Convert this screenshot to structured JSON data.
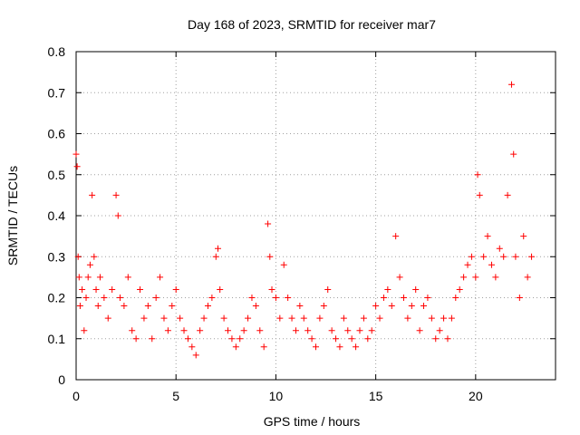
{
  "chart_data": {
    "type": "scatter",
    "title": "Day 168 of 2023, SRMTID for receiver mar7",
    "xlabel": "GPS time / hours",
    "ylabel": "SRMTID / TECUs",
    "xlim": [
      0,
      24
    ],
    "ylim": [
      0,
      0.8
    ],
    "xticks": [
      0,
      5,
      10,
      15,
      20
    ],
    "yticks": [
      0,
      0.1,
      0.2,
      0.3,
      0.4,
      0.5,
      0.6,
      0.7,
      0.8
    ],
    "xtick_labels": [
      "0",
      "5",
      "10",
      "15",
      "20"
    ],
    "ytick_labels": [
      "0",
      "0.1",
      "0.2",
      "0.3",
      "0.4",
      "0.5",
      "0.6",
      "0.7",
      "0.8"
    ],
    "grid": true,
    "marker": "+",
    "color": "#ff0000",
    "series": [
      {
        "name": "SRMTID",
        "x": [
          0.0,
          0.05,
          0.1,
          0.15,
          0.2,
          0.3,
          0.4,
          0.5,
          0.6,
          0.7,
          0.8,
          0.9,
          1.0,
          1.1,
          1.2,
          1.4,
          1.6,
          1.8,
          2.0,
          2.1,
          2.2,
          2.4,
          2.6,
          2.8,
          3.0,
          3.2,
          3.4,
          3.6,
          3.8,
          4.0,
          4.2,
          4.4,
          4.6,
          4.8,
          5.0,
          5.2,
          5.4,
          5.6,
          5.8,
          6.0,
          6.2,
          6.4,
          6.6,
          6.8,
          7.0,
          7.1,
          7.2,
          7.4,
          7.6,
          7.8,
          8.0,
          8.2,
          8.4,
          8.6,
          8.8,
          9.0,
          9.2,
          9.4,
          9.6,
          9.7,
          9.8,
          10.0,
          10.2,
          10.4,
          10.6,
          10.8,
          11.0,
          11.2,
          11.4,
          11.6,
          11.8,
          12.0,
          12.2,
          12.4,
          12.6,
          12.8,
          13.0,
          13.2,
          13.4,
          13.6,
          13.8,
          14.0,
          14.2,
          14.4,
          14.6,
          14.8,
          15.0,
          15.2,
          15.4,
          15.6,
          15.8,
          16.0,
          16.2,
          16.4,
          16.6,
          16.8,
          17.0,
          17.2,
          17.4,
          17.6,
          17.8,
          18.0,
          18.2,
          18.4,
          18.6,
          18.8,
          19.0,
          19.2,
          19.4,
          19.6,
          19.8,
          20.0,
          20.1,
          20.2,
          20.4,
          20.6,
          20.8,
          21.0,
          21.2,
          21.4,
          21.6,
          21.8,
          21.9,
          22.0,
          22.2,
          22.4,
          22.6,
          22.8
        ],
        "y": [
          0.55,
          0.52,
          0.3,
          0.25,
          0.18,
          0.22,
          0.12,
          0.2,
          0.25,
          0.28,
          0.45,
          0.3,
          0.22,
          0.18,
          0.25,
          0.2,
          0.15,
          0.22,
          0.45,
          0.4,
          0.2,
          0.18,
          0.25,
          0.12,
          0.1,
          0.22,
          0.15,
          0.18,
          0.1,
          0.2,
          0.25,
          0.15,
          0.12,
          0.18,
          0.22,
          0.15,
          0.12,
          0.1,
          0.08,
          0.06,
          0.12,
          0.15,
          0.18,
          0.2,
          0.3,
          0.32,
          0.22,
          0.15,
          0.12,
          0.1,
          0.08,
          0.1,
          0.12,
          0.15,
          0.2,
          0.18,
          0.12,
          0.08,
          0.38,
          0.3,
          0.22,
          0.2,
          0.15,
          0.28,
          0.2,
          0.15,
          0.12,
          0.18,
          0.15,
          0.12,
          0.1,
          0.08,
          0.15,
          0.18,
          0.22,
          0.12,
          0.1,
          0.08,
          0.15,
          0.12,
          0.1,
          0.08,
          0.12,
          0.15,
          0.1,
          0.12,
          0.18,
          0.15,
          0.2,
          0.22,
          0.18,
          0.35,
          0.25,
          0.2,
          0.15,
          0.18,
          0.22,
          0.12,
          0.18,
          0.2,
          0.15,
          0.1,
          0.12,
          0.15,
          0.1,
          0.15,
          0.2,
          0.22,
          0.25,
          0.28,
          0.3,
          0.25,
          0.5,
          0.45,
          0.3,
          0.35,
          0.28,
          0.25,
          0.32,
          0.3,
          0.45,
          0.72,
          0.55,
          0.3,
          0.2,
          0.35,
          0.25,
          0.3
        ]
      }
    ]
  }
}
